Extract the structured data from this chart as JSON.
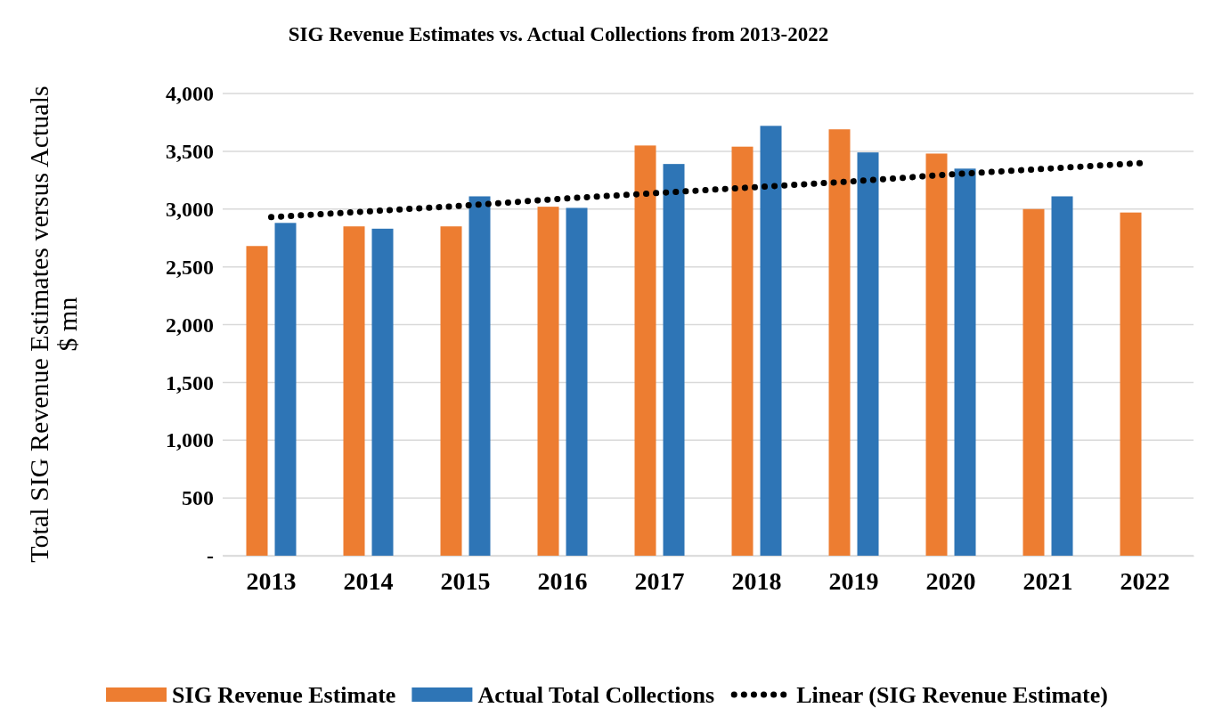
{
  "chart_data": {
    "type": "bar",
    "title": "SIG Revenue Estimates vs. Actual Collections from 2013-2022",
    "ylabel": "Total SIG Revenue Estimates versus Actuals $ mn",
    "categories": [
      "2013",
      "2014",
      "2015",
      "2016",
      "2017",
      "2018",
      "2019",
      "2020",
      "2021",
      "2022"
    ],
    "series": [
      {
        "name": "SIG Revenue Estimate",
        "color": "#ed7d31",
        "values": [
          2680,
          2850,
          2850,
          3020,
          3550,
          3540,
          3690,
          3480,
          3000,
          2970
        ]
      },
      {
        "name": "Actual Total Collections",
        "color": "#2e75b6",
        "values": [
          2880,
          2830,
          3110,
          3010,
          3390,
          3720,
          3490,
          3350,
          3110,
          null
        ]
      },
      {
        "name": "Linear (SIG Revenue Estimate)",
        "type": "line",
        "color": "#000000",
        "line_style": "dotted",
        "values": [
          2930,
          2980,
          3030,
          3090,
          3140,
          3190,
          3240,
          3300,
          3350,
          3400
        ]
      }
    ],
    "ylim": [
      0,
      4000
    ],
    "yticks": [
      {
        "value": 0,
        "label": "-"
      },
      {
        "value": 500,
        "label": "500"
      },
      {
        "value": 1000,
        "label": "1,000"
      },
      {
        "value": 1500,
        "label": "1,500"
      },
      {
        "value": 2000,
        "label": "2,000"
      },
      {
        "value": 2500,
        "label": "2,500"
      },
      {
        "value": 3000,
        "label": "3,000"
      },
      {
        "value": 3500,
        "label": "3,500"
      },
      {
        "value": 4000,
        "label": "4,000"
      }
    ],
    "grid": "y",
    "legend": "bottom"
  }
}
